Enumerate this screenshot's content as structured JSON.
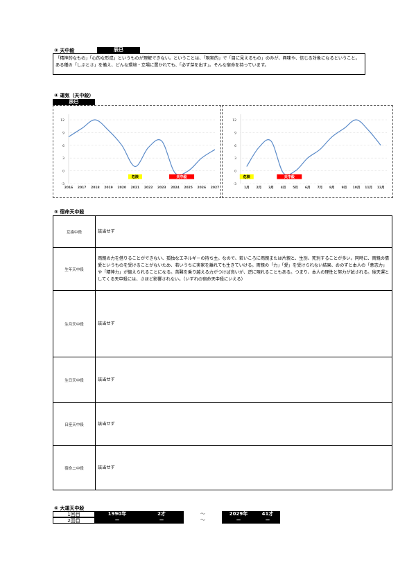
{
  "s3": {
    "title": "③ 天中殺",
    "badge": "辰巳",
    "text": "「精神的なもの」「心的な形成」というものが理解できない。ということは、「現実的」で「目に見えるもの」のみが、興味や、信じる対象になるということ。ある種の「しぶとさ」を備え、どんな環境・立場に置かれても、「必ず芽を出す」。そんな宿命を持っています。"
  },
  "s4": {
    "title": "④ 運気（天中殺）",
    "badge": "辰巳"
  },
  "chart_data": [
    {
      "type": "line",
      "categories": [
        "2016",
        "2017",
        "2018",
        "2019",
        "2020",
        "2021",
        "2022",
        "2023",
        "2024",
        "2025",
        "2026",
        "2027"
      ],
      "values": [
        8,
        10,
        12,
        9.5,
        6,
        1,
        5.5,
        7,
        -0.5,
        0,
        3,
        5
      ],
      "ylim": [
        -3,
        12
      ],
      "yticks": [
        "-3",
        "0",
        "3",
        "6",
        "9",
        "12"
      ],
      "grid": true,
      "color": "#5b8bc9",
      "annotations": [
        {
          "label": "危険",
          "at": "2021",
          "color": "#ffff00"
        },
        {
          "label": "天中殺",
          "at": "2024-2025",
          "color": "#ff0000"
        }
      ]
    },
    {
      "type": "line",
      "categories": [
        "1月",
        "2月",
        "3月",
        "4月",
        "5月",
        "6月",
        "7月",
        "8月",
        "9月",
        "10月",
        "11月",
        "12月"
      ],
      "values": [
        1,
        5.5,
        7,
        -0.5,
        0,
        3,
        5,
        8,
        10,
        12,
        9.5,
        6
      ],
      "ylim": [
        -3,
        12
      ],
      "yticks": [
        "-3",
        "0",
        "3",
        "6",
        "9",
        "12"
      ],
      "grid": true,
      "color": "#5b8bc9",
      "annotations": [
        {
          "label": "危険",
          "at": "1月",
          "color": "#ffff00"
        },
        {
          "label": "天中殺",
          "at": "4月-5月",
          "color": "#ff0000"
        }
      ]
    }
  ],
  "s5": {
    "title": "⑤ 宿命天中殺",
    "rows": [
      {
        "label": "互換中殺",
        "value": "該当せず"
      },
      {
        "label": "生年天中殺",
        "value": "両親の力を借りることができない、孤独なエネルギーの持ち主。なので、若いころに両親または片親と、生別、死別することが多い。同時に、両親の情愛というものを受けることがないため、若いうちに実家を離れても生きていける。両親の「力」「愛」を受けられない結果、おのずと本人の「意志力」や「精神力」が鍛えられることになる。苦難を乗り越える力がつけば良いが、逆に現れることもある。つまり、本人の理性と努力が試される。後天運としてくる天中殺には、さほど影響されない。（いずれの宿命天中殺にいえる）"
      },
      {
        "label": "生月天中殺",
        "value": "該当せず"
      },
      {
        "label": "生日天中殺",
        "value": "該当せず"
      },
      {
        "label": "日座天中殺",
        "value": "該当せず"
      },
      {
        "label": "宿命二中殺",
        "value": "該当せず"
      }
    ]
  },
  "s6": {
    "title": "⑥ 大運天中殺",
    "rows": [
      {
        "label": "1回目",
        "start_year": "1990年",
        "start_age": "2才",
        "tilde": "～",
        "end_year": "2029年",
        "end_age": "41才"
      },
      {
        "label": "2回目",
        "start_year": "－",
        "start_age": "－",
        "tilde": "～",
        "end_year": "－",
        "end_age": "－"
      }
    ]
  }
}
